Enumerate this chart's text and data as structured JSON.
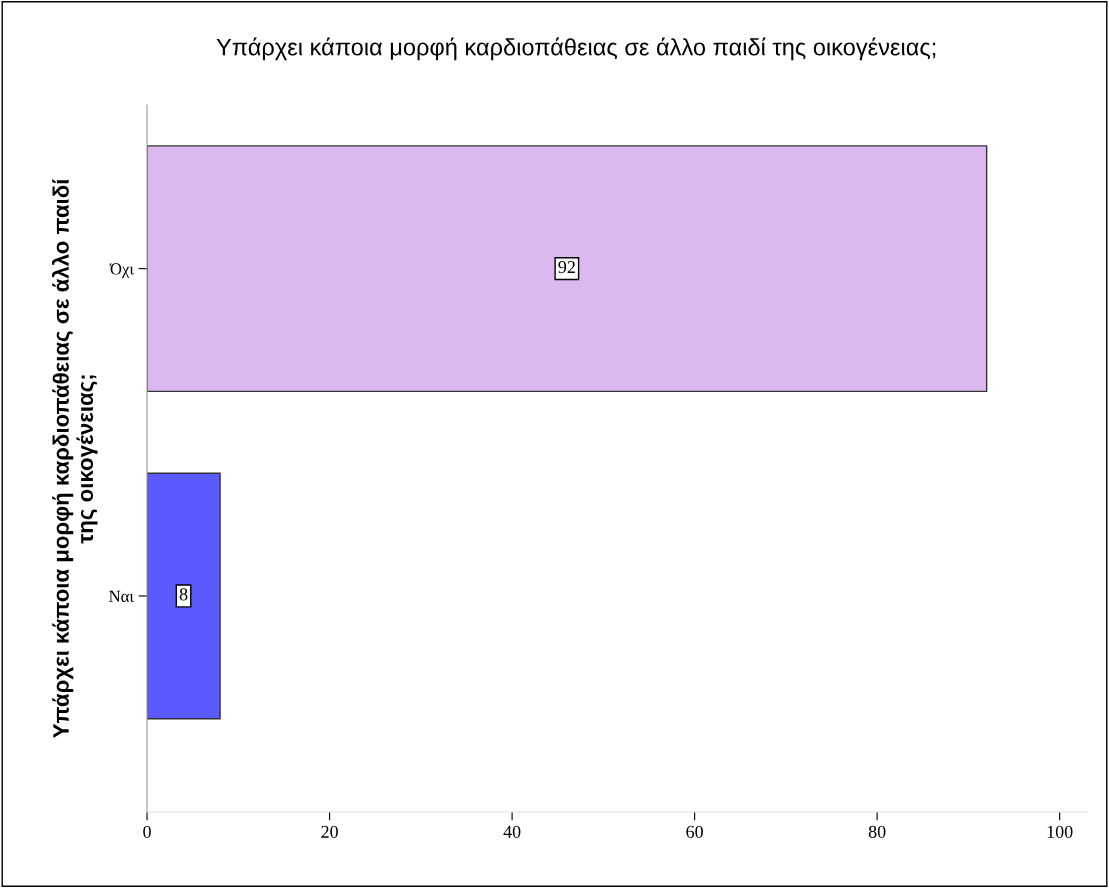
{
  "chart_data": {
    "type": "bar",
    "orientation": "horizontal",
    "title": "Υπάρχει κάποια μορφή καρδιοπάθειας σε άλλο παιδί της οικογένειας;",
    "ylabel": "Υπάρχει κάποια μορφή καρδιοπάθειας σε άλλο παιδί\nτης οικογένειας;",
    "categories": [
      "Όχι",
      "Ναι"
    ],
    "values": [
      92,
      8
    ],
    "colors": [
      "#dcb8f0",
      "#5a5aff"
    ],
    "xlim": [
      0,
      103
    ],
    "xticks": [
      0,
      20,
      40,
      60,
      80,
      100
    ],
    "data_labels": true,
    "grid": false,
    "legend": false
  }
}
